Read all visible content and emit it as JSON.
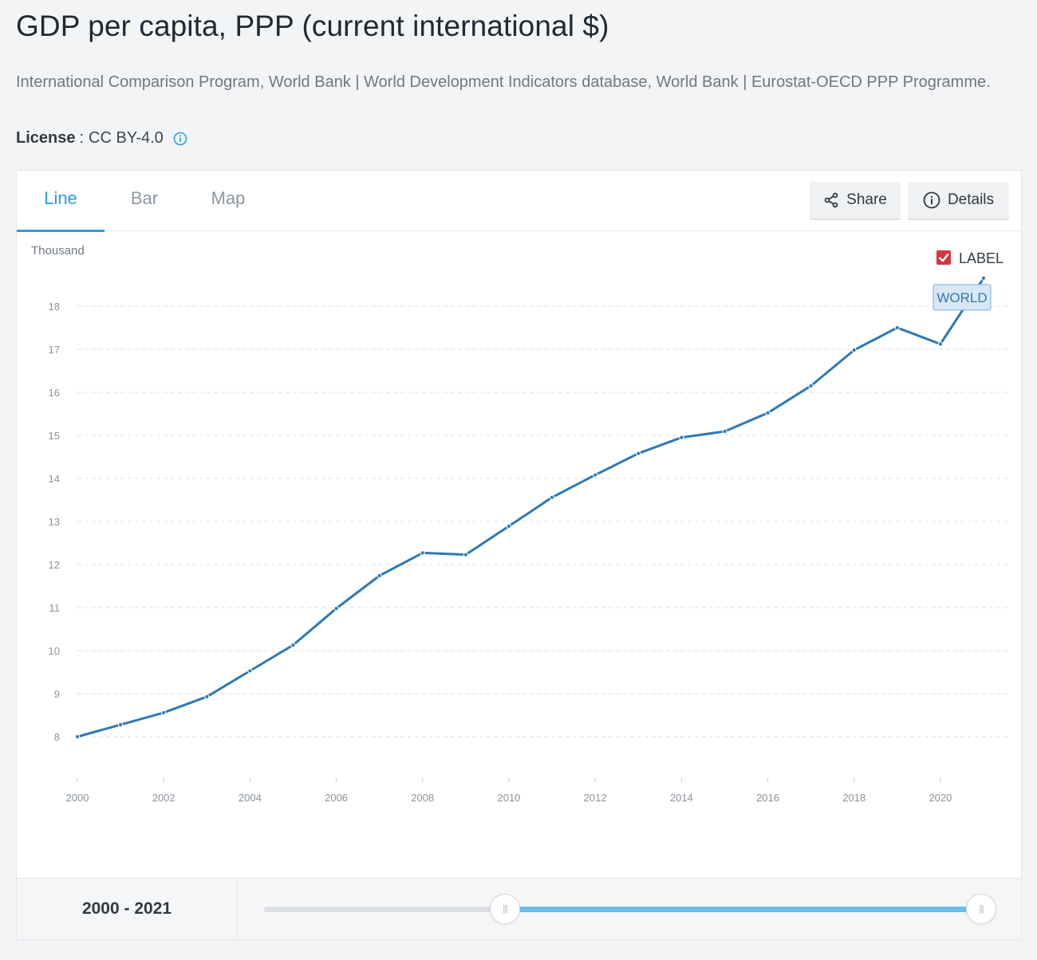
{
  "header": {
    "title": "GDP per capita, PPP (current international $)",
    "source": "International Comparison Program, World Bank | World Development Indicators database, World Bank | Eurostat-OECD PPP Programme.",
    "license_label": "License",
    "license_sep": ":",
    "license_value": "CC BY-4.0"
  },
  "tabs": [
    {
      "label": "Line",
      "active": true
    },
    {
      "label": "Bar",
      "active": false
    },
    {
      "label": "Map",
      "active": false
    }
  ],
  "toolbar": {
    "share_label": "Share",
    "details_label": "Details"
  },
  "legend": {
    "checkbox_label": "LABEL",
    "checked": true
  },
  "colors": {
    "line": "#2f79b1",
    "accent": "#2a9fd6",
    "checkbox": "#d8343c"
  },
  "chart_data": {
    "type": "line",
    "title": "GDP per capita, PPP (current international $)",
    "ylabel": "Thousand",
    "xlabel": "",
    "ylim": [
      7,
      18.7
    ],
    "yticks": [
      8,
      9,
      10,
      11,
      12,
      13,
      14,
      15,
      16,
      17,
      18
    ],
    "xlim": [
      2000,
      2021
    ],
    "xticks": [
      2000,
      2002,
      2004,
      2006,
      2008,
      2010,
      2012,
      2014,
      2016,
      2018,
      2020
    ],
    "grid": true,
    "series": [
      {
        "name": "WORLD",
        "x": [
          2000,
          2001,
          2002,
          2003,
          2004,
          2005,
          2006,
          2007,
          2008,
          2009,
          2010,
          2011,
          2012,
          2013,
          2014,
          2015,
          2016,
          2017,
          2018,
          2019,
          2020,
          2021
        ],
        "values": [
          8.0,
          8.28,
          8.56,
          8.93,
          9.53,
          10.13,
          10.98,
          11.74,
          12.27,
          12.23,
          12.89,
          13.56,
          14.08,
          14.58,
          14.95,
          15.09,
          15.52,
          16.15,
          16.98,
          17.5,
          17.12,
          18.65
        ]
      }
    ]
  },
  "footer": {
    "range_start": "2000",
    "range_sep": "-",
    "range_end": "2021",
    "slider_min": 2000,
    "slider_max": 2021
  }
}
